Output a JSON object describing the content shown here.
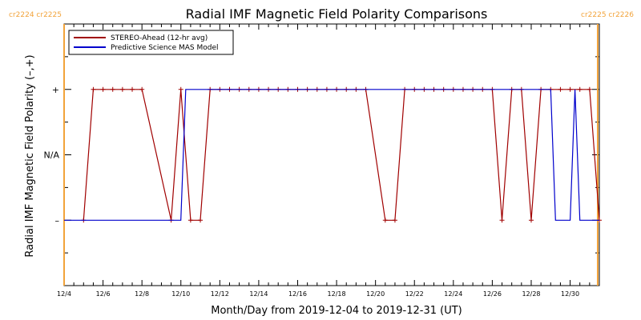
{
  "chart_data": {
    "type": "line",
    "title": "Radial IMF Magnetic Field Polarity Comparisons",
    "xlabel": "Month/Day from 2019-12-04 to 2019-12-31 (UT)",
    "ylabel": "Radial IMF Magnetic Field Polarity (–,+)",
    "xlim": [
      "2019-12-04",
      "2019-12-31 12:00"
    ],
    "y_levels": [
      "–",
      "N/A",
      "+"
    ],
    "ylim": [
      -2,
      2
    ],
    "x_tick_labels": [
      {
        "x": "2019-12-04",
        "label": "12/4"
      },
      {
        "x": "2019-12-06",
        "label": "12/6"
      },
      {
        "x": "2019-12-08",
        "label": "12/8"
      },
      {
        "x": "2019-12-10",
        "label": "12/10"
      },
      {
        "x": "2019-12-12",
        "label": "12/12"
      },
      {
        "x": "2019-12-14",
        "label": "12/14"
      },
      {
        "x": "2019-12-16",
        "label": "12/16"
      },
      {
        "x": "2019-12-18",
        "label": "12/18"
      },
      {
        "x": "2019-12-20",
        "label": "12/20"
      },
      {
        "x": "2019-12-22",
        "label": "12/22"
      },
      {
        "x": "2019-12-24",
        "label": "12/24"
      },
      {
        "x": "2019-12-26",
        "label": "12/26"
      },
      {
        "x": "2019-12-28",
        "label": "12/28"
      },
      {
        "x": "2019-12-30",
        "label": "12/30"
      }
    ],
    "y_tick_labels": [
      {
        "y": 1,
        "label": "+"
      },
      {
        "y": 0,
        "label": "N/A"
      },
      {
        "y": -1,
        "label": "–"
      }
    ],
    "carrington_markers": [
      {
        "x": "2019-12-04",
        "labels": [
          "cr2224",
          "cr2225"
        ],
        "side": "left"
      },
      {
        "x": "2019-12-31 10:00",
        "labels": [
          "cr2225",
          "cr2226"
        ],
        "side": "right"
      }
    ],
    "grid": false,
    "legend_position": "top-left",
    "series": [
      {
        "name": "STEREO-Ahead (12-hr avg)",
        "color": "#a00000",
        "marker": "+",
        "points": [
          {
            "x": "2019-12-05 00:00",
            "y": -1
          },
          {
            "x": "2019-12-05 12:00",
            "y": 1
          },
          {
            "x": "2019-12-06 00:00",
            "y": 1
          },
          {
            "x": "2019-12-06 12:00",
            "y": 1
          },
          {
            "x": "2019-12-07 00:00",
            "y": 1
          },
          {
            "x": "2019-12-07 12:00",
            "y": 1
          },
          {
            "x": "2019-12-08 00:00",
            "y": 1
          },
          {
            "x": "2019-12-09 12:00",
            "y": -1
          },
          {
            "x": "2019-12-10 00:00",
            "y": 1
          },
          {
            "x": "2019-12-10 12:00",
            "y": -1
          },
          {
            "x": "2019-12-11 00:00",
            "y": -1
          },
          {
            "x": "2019-12-11 12:00",
            "y": 1
          },
          {
            "x": "2019-12-12 00:00",
            "y": 1
          },
          {
            "x": "2019-12-12 12:00",
            "y": 1
          },
          {
            "x": "2019-12-13 00:00",
            "y": 1
          },
          {
            "x": "2019-12-13 12:00",
            "y": 1
          },
          {
            "x": "2019-12-14 00:00",
            "y": 1
          },
          {
            "x": "2019-12-14 12:00",
            "y": 1
          },
          {
            "x": "2019-12-15 00:00",
            "y": 1
          },
          {
            "x": "2019-12-15 12:00",
            "y": 1
          },
          {
            "x": "2019-12-16 00:00",
            "y": 1
          },
          {
            "x": "2019-12-16 12:00",
            "y": 1
          },
          {
            "x": "2019-12-17 00:00",
            "y": 1
          },
          {
            "x": "2019-12-17 12:00",
            "y": 1
          },
          {
            "x": "2019-12-18 00:00",
            "y": 1
          },
          {
            "x": "2019-12-18 12:00",
            "y": 1
          },
          {
            "x": "2019-12-19 00:00",
            "y": 1
          },
          {
            "x": "2019-12-19 12:00",
            "y": 1
          },
          {
            "x": "2019-12-20 12:00",
            "y": -1
          },
          {
            "x": "2019-12-21 00:00",
            "y": -1
          },
          {
            "x": "2019-12-21 12:00",
            "y": 1
          },
          {
            "x": "2019-12-22 00:00",
            "y": 1
          },
          {
            "x": "2019-12-22 12:00",
            "y": 1
          },
          {
            "x": "2019-12-23 00:00",
            "y": 1
          },
          {
            "x": "2019-12-23 12:00",
            "y": 1
          },
          {
            "x": "2019-12-24 00:00",
            "y": 1
          },
          {
            "x": "2019-12-24 12:00",
            "y": 1
          },
          {
            "x": "2019-12-25 00:00",
            "y": 1
          },
          {
            "x": "2019-12-25 12:00",
            "y": 1
          },
          {
            "x": "2019-12-26 00:00",
            "y": 1
          },
          {
            "x": "2019-12-26 12:00",
            "y": -1
          },
          {
            "x": "2019-12-27 00:00",
            "y": 1
          },
          {
            "x": "2019-12-27 12:00",
            "y": 1
          },
          {
            "x": "2019-12-28 00:00",
            "y": -1
          },
          {
            "x": "2019-12-28 12:00",
            "y": 1
          },
          {
            "x": "2019-12-29 00:00",
            "y": 1
          },
          {
            "x": "2019-12-29 12:00",
            "y": 1
          },
          {
            "x": "2019-12-30 00:00",
            "y": 1
          },
          {
            "x": "2019-12-30 12:00",
            "y": 1
          },
          {
            "x": "2019-12-31 00:00",
            "y": 1
          },
          {
            "x": "2019-12-31 12:00",
            "y": -1
          }
        ]
      },
      {
        "name": "Predictive Science MAS Model",
        "color": "#0000cc",
        "points": [
          {
            "x": "2019-12-04 00:00",
            "y": -1
          },
          {
            "x": "2019-12-10 00:00",
            "y": -1
          },
          {
            "x": "2019-12-10 06:00",
            "y": 1
          },
          {
            "x": "2019-12-29 00:00",
            "y": 1
          },
          {
            "x": "2019-12-29 06:00",
            "y": -1
          },
          {
            "x": "2019-12-30 00:00",
            "y": -1
          },
          {
            "x": "2019-12-30 06:00",
            "y": 1
          },
          {
            "x": "2019-12-30 12:00",
            "y": -1
          },
          {
            "x": "2019-12-31 12:00",
            "y": -1
          }
        ]
      }
    ]
  }
}
